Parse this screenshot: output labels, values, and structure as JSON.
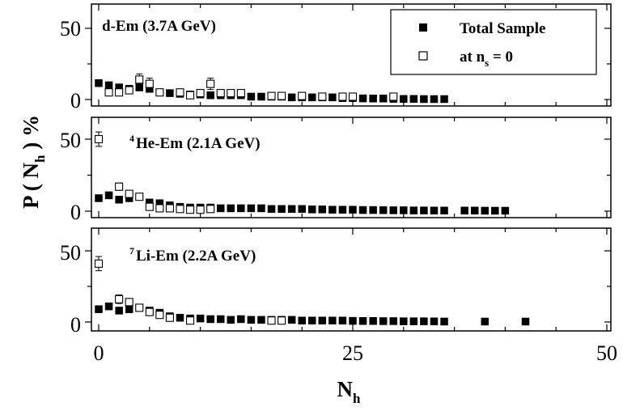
{
  "chart_data": [
    {
      "type": "scatter",
      "title_main": "d-Em (3.7A GeV)",
      "title_sup": "",
      "xlim": [
        0,
        50
      ],
      "ylim": [
        -3,
        60
      ],
      "yticks": [
        "0",
        "50"
      ],
      "series": [
        {
          "name": "Total Sample",
          "marker": "filled-square",
          "x": [
            0,
            1,
            2,
            3,
            4,
            5,
            6,
            7,
            8,
            9,
            10,
            11,
            12,
            13,
            14,
            15,
            16,
            17,
            18,
            19,
            20,
            21,
            22,
            23,
            24,
            25,
            26,
            27,
            28,
            29,
            30,
            31,
            32,
            33,
            34
          ],
          "y": [
            11.5,
            10,
            8.5,
            7.5,
            8.5,
            7.5,
            5,
            4.5,
            4,
            3.5,
            3.5,
            3,
            3,
            3,
            3,
            2,
            2,
            2,
            2,
            1.5,
            1.5,
            1.5,
            1.5,
            1.5,
            1,
            1,
            0.8,
            0.7,
            0.7,
            0.5,
            0.4,
            0.4,
            0.3,
            0.3,
            0.3
          ]
        },
        {
          "name": "at n_s = 0",
          "marker": "open-square",
          "x": [
            1,
            2,
            3,
            4,
            5,
            6,
            8,
            9,
            10,
            11,
            12,
            13,
            14,
            17,
            18,
            20,
            22,
            24,
            25,
            29
          ],
          "y": [
            5,
            5,
            6.5,
            14,
            11,
            5,
            5,
            3,
            4.5,
            11,
            4.5,
            4.5,
            4.5,
            2.5,
            2.5,
            2.5,
            2,
            2,
            2,
            2
          ],
          "err": [
            2,
            2,
            2.5,
            4,
            4,
            2,
            2,
            1.5,
            2,
            4,
            2,
            2,
            2,
            1.5,
            1.5,
            1.5,
            1,
            1,
            1,
            1
          ]
        }
      ]
    },
    {
      "type": "scatter",
      "title_main": "He-Em (2.1A GeV)",
      "title_sup": "4",
      "xlim": [
        0,
        50
      ],
      "ylim": [
        -3,
        60
      ],
      "yticks": [
        "0",
        "50"
      ],
      "series": [
        {
          "name": "Total Sample",
          "marker": "filled-square",
          "x": [
            0,
            1,
            2,
            3,
            4,
            5,
            6,
            7,
            8,
            9,
            10,
            11,
            12,
            13,
            14,
            15,
            16,
            17,
            18,
            19,
            20,
            21,
            22,
            23,
            24,
            25,
            26,
            27,
            28,
            29,
            30,
            31,
            32,
            33,
            34,
            36,
            37,
            38,
            39,
            40
          ],
          "y": [
            9,
            11,
            8,
            9,
            10,
            6,
            5.5,
            4,
            3,
            2.5,
            2.5,
            2.5,
            2,
            2,
            2,
            2,
            2,
            1.5,
            1.5,
            1.5,
            1.5,
            1.2,
            1.2,
            1,
            1,
            1,
            0.8,
            0.8,
            0.7,
            0.6,
            0.6,
            0.5,
            0.5,
            0.4,
            0.4,
            0.4,
            0.4,
            0.3,
            0.3,
            0.3
          ]
        },
        {
          "name": "at n_s = 0",
          "marker": "open-square",
          "x": [
            0,
            2,
            3,
            4,
            5,
            6,
            7,
            8,
            9,
            10,
            11
          ],
          "y": [
            50,
            17,
            12,
            10,
            3,
            2,
            2,
            1.5,
            1,
            1,
            1.5
          ],
          "err": [
            5,
            2.5,
            2,
            1.5,
            1,
            1,
            1,
            0.8,
            0.8,
            0.8,
            0.8
          ]
        }
      ]
    },
    {
      "type": "scatter",
      "title_main": "Li-Em (2.2A GeV)",
      "title_sup": "7",
      "xlim": [
        0,
        50
      ],
      "ylim": [
        -3,
        60
      ],
      "yticks": [
        "0",
        "50"
      ],
      "series": [
        {
          "name": "Total Sample",
          "marker": "filled-square",
          "x": [
            0,
            1,
            2,
            3,
            4,
            5,
            6,
            7,
            8,
            9,
            10,
            11,
            12,
            13,
            14,
            15,
            16,
            17,
            18,
            19,
            20,
            21,
            22,
            23,
            24,
            25,
            26,
            27,
            28,
            29,
            30,
            31,
            32,
            33,
            34,
            38,
            42
          ],
          "y": [
            9,
            11,
            8,
            9,
            10,
            8,
            6.5,
            4,
            3,
            2.5,
            2.5,
            2,
            2,
            1.5,
            2,
            1.5,
            1.5,
            1.5,
            1.5,
            1.5,
            1,
            1,
            1,
            1,
            1,
            0.8,
            0.7,
            0.7,
            0.6,
            0.6,
            0.5,
            0.5,
            0.5,
            0.4,
            0.3,
            0.3,
            0.3
          ]
        },
        {
          "name": "at n_s = 0",
          "marker": "open-square",
          "x": [
            0,
            2,
            3,
            4,
            5,
            6,
            7,
            9,
            17,
            18
          ],
          "y": [
            41,
            16,
            14,
            10,
            7,
            5,
            3,
            1,
            1,
            1
          ],
          "err": [
            5,
            3,
            2.5,
            2,
            1.5,
            1,
            1,
            0.8,
            0.8,
            0.8
          ]
        }
      ]
    }
  ],
  "axes": {
    "xticks": [
      "0",
      "25",
      "50"
    ],
    "x_label_main": "N",
    "x_label_sub": "h",
    "y_label_main": "P ( N",
    "y_label_sub": "h",
    "y_label_end": " ) %"
  },
  "legend": {
    "placement": "top-right",
    "total_label": "Total Sample",
    "ns_label_main": "at n",
    "ns_label_sub": "s",
    "ns_label_end": " = 0"
  }
}
